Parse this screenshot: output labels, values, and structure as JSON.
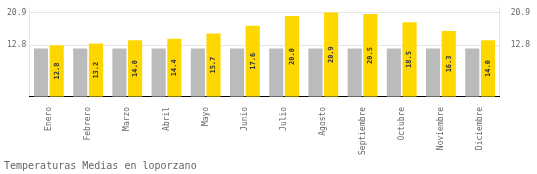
{
  "chart_data": {
    "type": "bar",
    "title": "Temperaturas Medias en loporzano",
    "categories": [
      "Enero",
      "Febrero",
      "Marzo",
      "Abril",
      "Mayo",
      "Junio",
      "Julio",
      "Agosto",
      "Septiembre",
      "Octubre",
      "Noviembre",
      "Diciembre"
    ],
    "series": [
      {
        "color": "#BBBBBB",
        "values": [
          12.0,
          12.0,
          12.0,
          12.0,
          12.0,
          12.0,
          12.0,
          12.0,
          12.0,
          12.0,
          12.0,
          12.0
        ]
      },
      {
        "color": "#FFD700",
        "values": [
          12.8,
          13.2,
          14.0,
          14.4,
          15.7,
          17.6,
          20.0,
          20.9,
          20.5,
          18.5,
          16.3,
          14.0
        ],
        "data_labels": true,
        "value_labels": [
          "12.8",
          "13.2",
          "14.0",
          "14.4",
          "15.7",
          "17.6",
          "20.0",
          "20.9",
          "20.5",
          "18.5",
          "16.3",
          "14.0"
        ]
      }
    ],
    "ylim": [
      0,
      22.0495
    ],
    "yticks": [
      12.8,
      20.9
    ],
    "y2lim": [
      0,
      22.0495
    ],
    "y2ticks": [
      12.8,
      20.9
    ],
    "grid": true
  }
}
